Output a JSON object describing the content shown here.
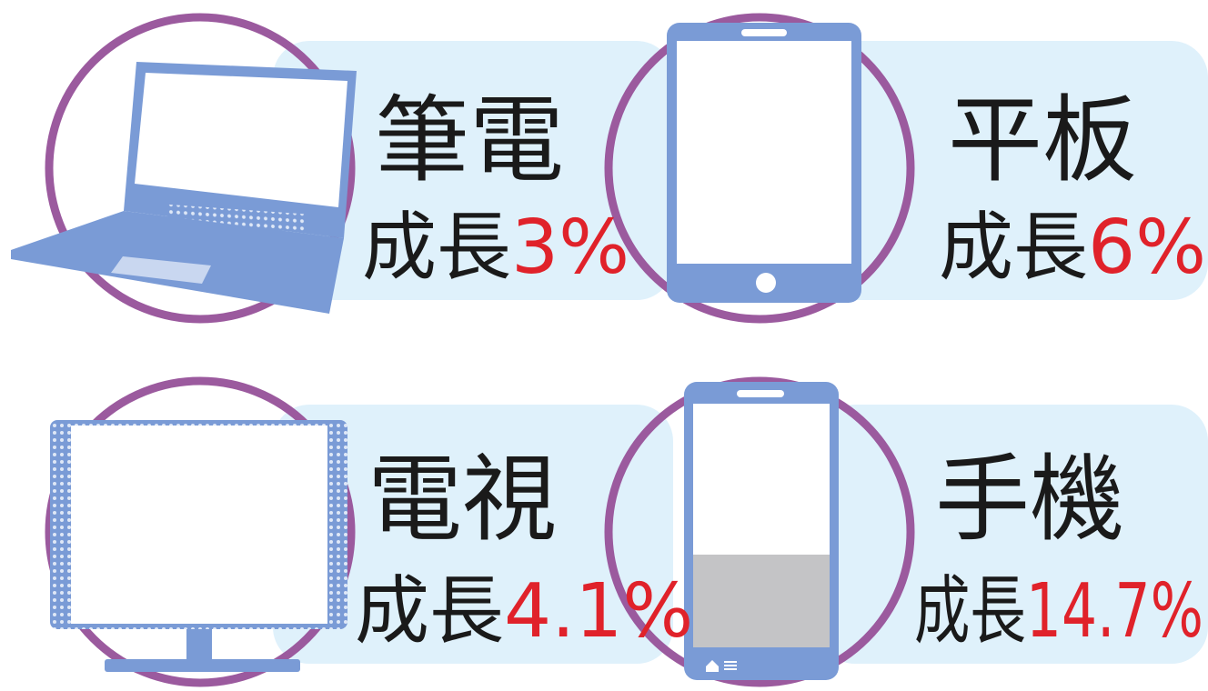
{
  "items": [
    {
      "name": "筆電",
      "label": "成長",
      "growth": "3%"
    },
    {
      "name": "平板",
      "label": "成長",
      "growth": "6%"
    },
    {
      "name": "電視",
      "label": "成長",
      "growth": "4.1%"
    },
    {
      "name": "手機",
      "label": "成長",
      "growth": "14.7%"
    }
  ]
}
